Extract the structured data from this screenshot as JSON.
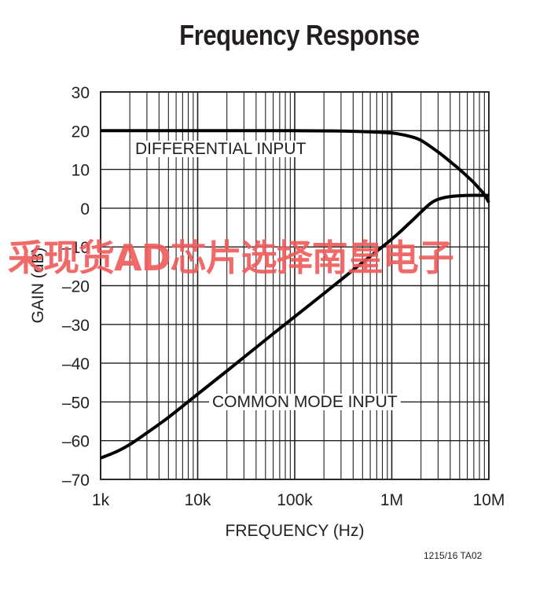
{
  "chart_data": {
    "type": "line",
    "title": "Frequency Response",
    "xlabel": "FREQUENCY (Hz)",
    "ylabel": "GAIN (dB)",
    "xscale": "log",
    "xlim": [
      1000,
      10000000
    ],
    "ylim": [
      -70,
      30
    ],
    "x_ticks": [
      1000,
      10000,
      100000,
      1000000,
      10000000
    ],
    "x_tick_labels": [
      "1k",
      "10k",
      "100k",
      "1M",
      "10M"
    ],
    "y_ticks": [
      30,
      20,
      10,
      0,
      -10,
      -20,
      -30,
      -40,
      -50,
      -60,
      -70
    ],
    "y_tick_labels": [
      "30",
      "20",
      "10",
      "0",
      "–10",
      "–20",
      "–30",
      "–40",
      "–50",
      "–60",
      "–70"
    ],
    "grid": true,
    "series": [
      {
        "name": "DIFFERENTIAL INPUT",
        "x": [
          1000,
          10000,
          100000,
          300000,
          600000,
          1000000,
          1500000,
          2000000,
          3000000,
          4000000,
          5000000,
          6000000,
          7000000,
          8000000,
          9000000,
          10000000
        ],
        "y": [
          20,
          20,
          20,
          19.9,
          19.7,
          19.4,
          18.6,
          17.5,
          14.5,
          12,
          10,
          8.2,
          6.6,
          5,
          3.5,
          1.5
        ]
      },
      {
        "name": "COMMON MODE INPUT",
        "x": [
          1000,
          1500,
          2000,
          3000,
          5000,
          10000,
          20000,
          50000,
          100000,
          200000,
          500000,
          1000000,
          1500000,
          2000000,
          2500000,
          3000000,
          4000000,
          6000000,
          10000000
        ],
        "y": [
          -64.5,
          -62.7,
          -61,
          -58,
          -54,
          -48,
          -42,
          -34,
          -28,
          -22,
          -14,
          -8,
          -4,
          -1,
          1.2,
          2.3,
          3,
          3.3,
          3.3
        ]
      }
    ],
    "annotations": [
      "DIFFERENTIAL INPUT",
      "COMMON MODE INPUT"
    ]
  },
  "figure_id": "1215/16 TA02",
  "watermark": "采现货AD芯片选择南皇电子"
}
